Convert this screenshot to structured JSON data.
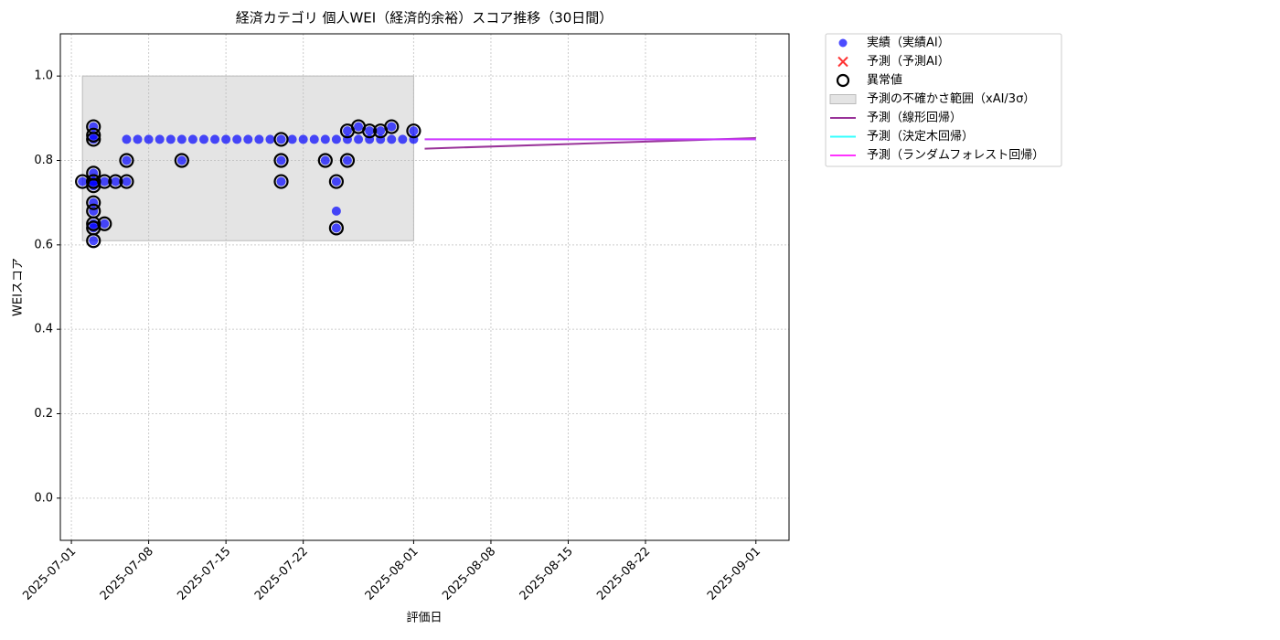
{
  "chart_data": {
    "type": "scatter",
    "title": "経済カテゴリ 個人WEI（経済的余裕）スコア推移（30日間）",
    "x_label": "評価日",
    "y_label": "WEIスコア",
    "xlim": [
      "2025-06-30",
      "2025-09-04"
    ],
    "ylim": [
      -0.1,
      1.1
    ],
    "xticks": [
      "2025-07-01",
      "2025-07-08",
      "2025-07-15",
      "2025-07-22",
      "2025-08-01",
      "2025-08-08",
      "2025-08-15",
      "2025-08-22",
      "2025-09-01"
    ],
    "yticks": [
      {
        "value": 0.0,
        "label": "0.0"
      },
      0.2,
      0.4,
      0.6,
      0.8,
      {
        "value": 1.0,
        "label": "1.0"
      }
    ],
    "grid": true,
    "legend": "outside-upper-right",
    "series": [
      {
        "name": "実績（実績AI）",
        "type": "scatter",
        "marker": "dot",
        "color": "#0000ff",
        "x": [
          "2025-07-02",
          "2025-07-03",
          "2025-07-03",
          "2025-07-03",
          "2025-07-03",
          "2025-07-03",
          "2025-07-03",
          "2025-07-03",
          "2025-07-03",
          "2025-07-03",
          "2025-07-03",
          "2025-07-03",
          "2025-07-03",
          "2025-07-04",
          "2025-07-04",
          "2025-07-05",
          "2025-07-06",
          "2025-07-06",
          "2025-07-06",
          "2025-07-07",
          "2025-07-08",
          "2025-07-09",
          "2025-07-10",
          "2025-07-11",
          "2025-07-11",
          "2025-07-12",
          "2025-07-13",
          "2025-07-14",
          "2025-07-15",
          "2025-07-16",
          "2025-07-17",
          "2025-07-18",
          "2025-07-19",
          "2025-07-20",
          "2025-07-20",
          "2025-07-20",
          "2025-07-21",
          "2025-07-22",
          "2025-07-23",
          "2025-07-24",
          "2025-07-24",
          "2025-07-25",
          "2025-07-25",
          "2025-07-25",
          "2025-07-25",
          "2025-07-26",
          "2025-07-26",
          "2025-07-26",
          "2025-07-27",
          "2025-07-27",
          "2025-07-28",
          "2025-07-28",
          "2025-07-29",
          "2025-07-29",
          "2025-07-30",
          "2025-07-30",
          "2025-07-31",
          "2025-08-01",
          "2025-08-01"
        ],
        "values": [
          0.75,
          0.75,
          0.65,
          0.61,
          0.64,
          0.68,
          0.7,
          0.74,
          0.77,
          0.85,
          0.86,
          0.88,
          0.75,
          0.65,
          0.75,
          0.75,
          0.75,
          0.8,
          0.85,
          0.85,
          0.85,
          0.85,
          0.85,
          0.85,
          0.8,
          0.85,
          0.85,
          0.85,
          0.85,
          0.85,
          0.85,
          0.85,
          0.85,
          0.85,
          0.75,
          0.8,
          0.85,
          0.85,
          0.85,
          0.85,
          0.8,
          0.85,
          0.75,
          0.64,
          0.68,
          0.85,
          0.8,
          0.87,
          0.85,
          0.88,
          0.85,
          0.87,
          0.85,
          0.87,
          0.85,
          0.88,
          0.85,
          0.85,
          0.87
        ]
      },
      {
        "name": "予測（予測AI）",
        "type": "scatter",
        "marker": "cross",
        "color": "#ff0000",
        "x": [],
        "values": []
      },
      {
        "name": "異常値",
        "type": "scatter",
        "marker": "ring",
        "color": "#000000",
        "x": [
          "2025-07-02",
          "2025-07-03",
          "2025-07-03",
          "2025-07-03",
          "2025-07-03",
          "2025-07-03",
          "2025-07-03",
          "2025-07-03",
          "2025-07-03",
          "2025-07-03",
          "2025-07-03",
          "2025-07-03",
          "2025-07-03",
          "2025-07-04",
          "2025-07-04",
          "2025-07-05",
          "2025-07-06",
          "2025-07-06",
          "2025-07-11",
          "2025-07-20",
          "2025-07-20",
          "2025-07-20",
          "2025-07-24",
          "2025-07-25",
          "2025-07-25",
          "2025-07-26",
          "2025-07-26",
          "2025-07-27",
          "2025-07-28",
          "2025-07-29",
          "2025-07-30",
          "2025-08-01"
        ],
        "values": [
          0.75,
          0.75,
          0.65,
          0.61,
          0.64,
          0.68,
          0.7,
          0.74,
          0.77,
          0.85,
          0.86,
          0.88,
          0.75,
          0.65,
          0.75,
          0.75,
          0.75,
          0.8,
          0.8,
          0.75,
          0.8,
          0.85,
          0.8,
          0.75,
          0.64,
          0.8,
          0.87,
          0.88,
          0.87,
          0.87,
          0.88,
          0.87
        ]
      },
      {
        "name": "予測の不確かさ範囲（xAI/3σ）",
        "type": "band",
        "color": "#bbbbbb",
        "x": [
          "2025-07-02",
          "2025-08-01"
        ],
        "lower": [
          0.61,
          0.61
        ],
        "upper": [
          1.0,
          1.0
        ]
      },
      {
        "name": "予測（線形回帰）",
        "type": "line",
        "color": "#800080",
        "x": [
          "2025-08-02",
          "2025-09-01"
        ],
        "values": [
          0.828,
          0.853
        ]
      },
      {
        "name": "予測（決定木回帰）",
        "type": "line",
        "color": "#00ffff",
        "x": [
          "2025-08-02",
          "2025-09-01"
        ],
        "values": [
          0.85,
          0.85
        ]
      },
      {
        "name": "予測（ランダムフォレスト回帰）",
        "type": "line",
        "color": "#ff00ff",
        "x": [
          "2025-08-02",
          "2025-09-01"
        ],
        "values": [
          0.85,
          0.85
        ]
      }
    ]
  }
}
